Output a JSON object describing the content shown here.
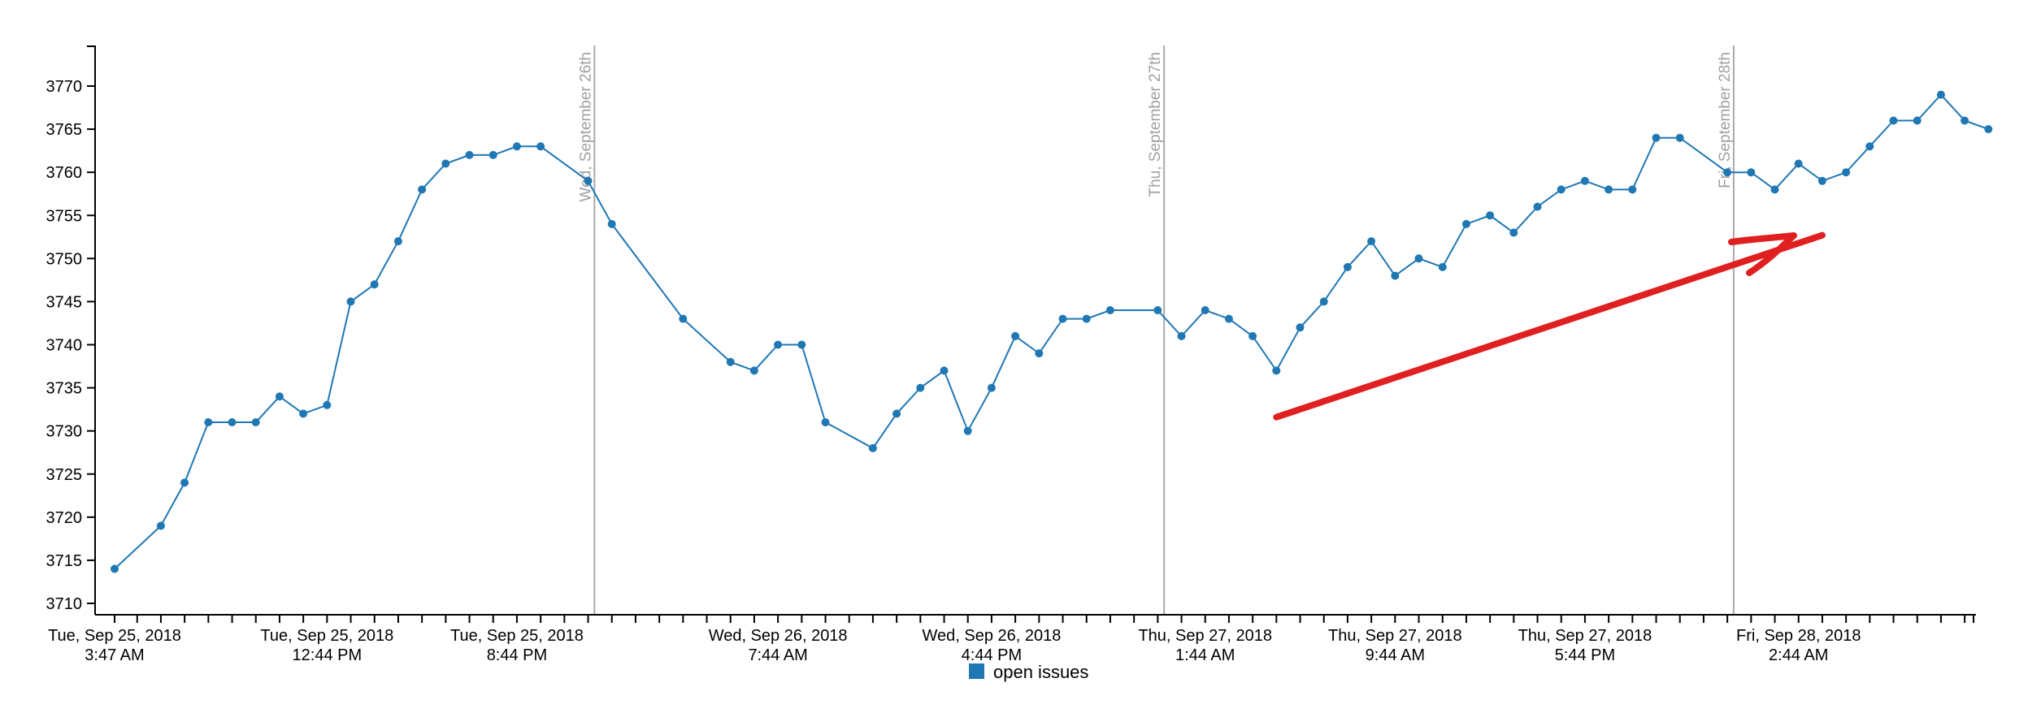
{
  "chart_data": {
    "type": "line",
    "x_unit": "datetime",
    "ylim": [
      3710,
      3775
    ],
    "y_ticks": [
      3710,
      3715,
      3720,
      3725,
      3730,
      3735,
      3740,
      3745,
      3750,
      3755,
      3760,
      3765,
      3770
    ],
    "x_tick_labels": [
      {
        "date": "Tue, Sep 25, 2018",
        "time": "3:47 AM"
      },
      {
        "date": "Tue, Sep 25, 2018",
        "time": "12:44 PM"
      },
      {
        "date": "Tue, Sep 25, 2018",
        "time": "8:44 PM"
      },
      {
        "date": "Wed, Sep 26, 2018",
        "time": "7:44 AM"
      },
      {
        "date": "Wed, Sep 26, 2018",
        "time": "4:44 PM"
      },
      {
        "date": "Thu, Sep 27, 2018",
        "time": "1:44 AM"
      },
      {
        "date": "Thu, Sep 27, 2018",
        "time": "9:44 AM"
      },
      {
        "date": "Thu, Sep 27, 2018",
        "time": "5:44 PM"
      },
      {
        "date": "Fri, Sep 28, 2018",
        "time": "2:44 AM"
      }
    ],
    "day_markers": [
      "Wed, September 26th",
      "Thu, September 27th",
      "Fri, September 28th"
    ],
    "legend": "top-none, bottom-center",
    "grid": false,
    "series": [
      {
        "name": "open issues",
        "color": "#1f77b4",
        "points": [
          [
            "2018-09-25 03:47",
            3714
          ],
          [
            "2018-09-25 05:44",
            3719
          ],
          [
            "2018-09-25 06:44",
            3724
          ],
          [
            "2018-09-25 07:44",
            3731
          ],
          [
            "2018-09-25 08:44",
            3731
          ],
          [
            "2018-09-25 09:44",
            3731
          ],
          [
            "2018-09-25 10:44",
            3734
          ],
          [
            "2018-09-25 11:44",
            3732
          ],
          [
            "2018-09-25 12:44",
            3733
          ],
          [
            "2018-09-25 13:44",
            3745
          ],
          [
            "2018-09-25 14:44",
            3747
          ],
          [
            "2018-09-25 15:44",
            3752
          ],
          [
            "2018-09-25 16:44",
            3758
          ],
          [
            "2018-09-25 17:44",
            3761
          ],
          [
            "2018-09-25 18:44",
            3762
          ],
          [
            "2018-09-25 19:44",
            3762
          ],
          [
            "2018-09-25 20:44",
            3763
          ],
          [
            "2018-09-25 21:44",
            3763
          ],
          [
            "2018-09-25 23:44",
            3759
          ],
          [
            "2018-09-26 00:44",
            3754
          ],
          [
            "2018-09-26 03:44",
            3743
          ],
          [
            "2018-09-26 05:44",
            3738
          ],
          [
            "2018-09-26 06:44",
            3737
          ],
          [
            "2018-09-26 07:44",
            3740
          ],
          [
            "2018-09-26 08:44",
            3740
          ],
          [
            "2018-09-26 09:44",
            3731
          ],
          [
            "2018-09-26 11:44",
            3728
          ],
          [
            "2018-09-26 12:44",
            3732
          ],
          [
            "2018-09-26 13:44",
            3735
          ],
          [
            "2018-09-26 14:44",
            3737
          ],
          [
            "2018-09-26 15:44",
            3730
          ],
          [
            "2018-09-26 16:44",
            3735
          ],
          [
            "2018-09-26 17:44",
            3741
          ],
          [
            "2018-09-26 18:44",
            3739
          ],
          [
            "2018-09-26 19:44",
            3743
          ],
          [
            "2018-09-26 20:44",
            3743
          ],
          [
            "2018-09-26 21:44",
            3744
          ],
          [
            "2018-09-26 23:44",
            3744
          ],
          [
            "2018-09-27 00:44",
            3741
          ],
          [
            "2018-09-27 01:44",
            3744
          ],
          [
            "2018-09-27 02:44",
            3743
          ],
          [
            "2018-09-27 03:44",
            3741
          ],
          [
            "2018-09-27 04:44",
            3737
          ],
          [
            "2018-09-27 05:44",
            3742
          ],
          [
            "2018-09-27 06:44",
            3745
          ],
          [
            "2018-09-27 07:44",
            3749
          ],
          [
            "2018-09-27 08:44",
            3752
          ],
          [
            "2018-09-27 09:44",
            3748
          ],
          [
            "2018-09-27 10:44",
            3750
          ],
          [
            "2018-09-27 11:44",
            3749
          ],
          [
            "2018-09-27 12:44",
            3754
          ],
          [
            "2018-09-27 13:44",
            3755
          ],
          [
            "2018-09-27 14:44",
            3753
          ],
          [
            "2018-09-27 15:44",
            3756
          ],
          [
            "2018-09-27 16:44",
            3758
          ],
          [
            "2018-09-27 17:44",
            3759
          ],
          [
            "2018-09-27 18:44",
            3758
          ],
          [
            "2018-09-27 19:44",
            3758
          ],
          [
            "2018-09-27 20:44",
            3764
          ],
          [
            "2018-09-27 21:44",
            3764
          ],
          [
            "2018-09-27 23:44",
            3760
          ],
          [
            "2018-09-28 00:44",
            3760
          ],
          [
            "2018-09-28 01:44",
            3758
          ],
          [
            "2018-09-28 02:44",
            3761
          ],
          [
            "2018-09-28 03:44",
            3759
          ],
          [
            "2018-09-28 04:44",
            3760
          ],
          [
            "2018-09-28 05:44",
            3763
          ],
          [
            "2018-09-28 06:44",
            3766
          ],
          [
            "2018-09-28 07:44",
            3766
          ],
          [
            "2018-09-28 08:44",
            3769
          ],
          [
            "2018-09-28 09:44",
            3766
          ],
          [
            "2018-09-28 10:44",
            3765
          ]
        ]
      }
    ],
    "annotation": {
      "kind": "arrow",
      "color": "#e02020",
      "from": [
        "2018-09-27 04:44",
        3731.6
      ],
      "to": [
        "2018-09-28 03:44",
        3752.7
      ]
    }
  }
}
